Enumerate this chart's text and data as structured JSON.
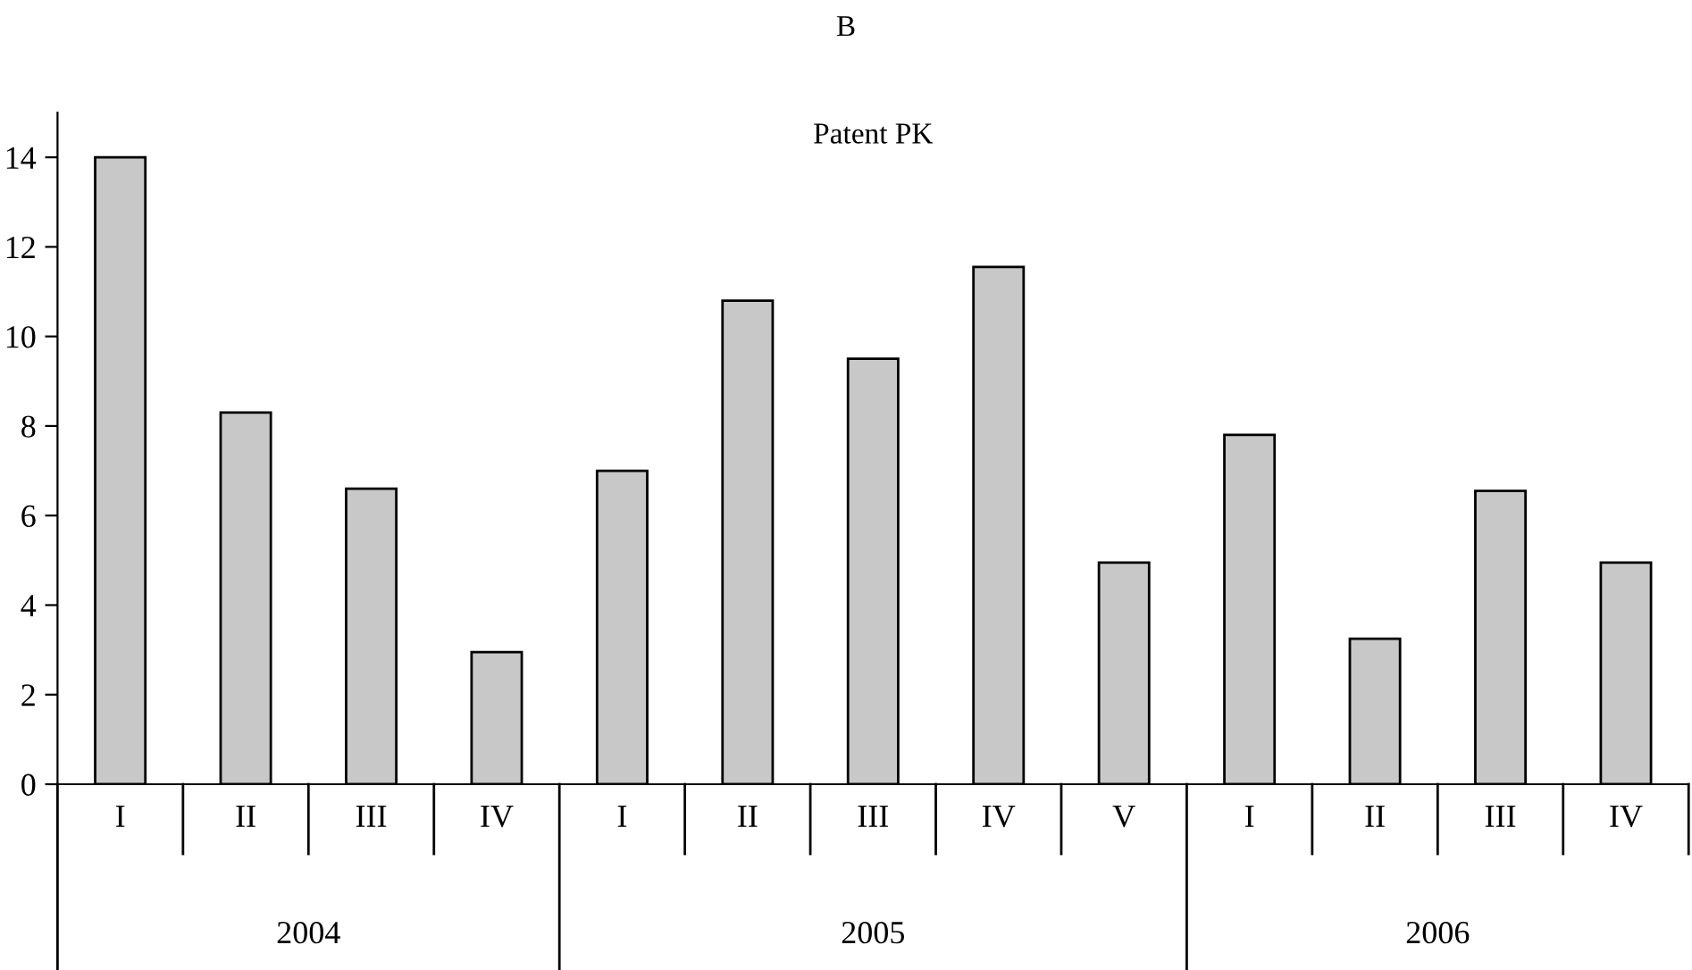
{
  "chart_data": {
    "type": "bar",
    "title": "B",
    "subtitle": "Patent PK",
    "categories": [
      "I",
      "II",
      "III",
      "IV",
      "I",
      "II",
      "III",
      "IV",
      "V",
      "I",
      "II",
      "III",
      "IV"
    ],
    "values": [
      14.0,
      8.3,
      6.6,
      2.95,
      7.0,
      10.8,
      9.5,
      11.55,
      4.95,
      7.8,
      3.25,
      6.55,
      4.95
    ],
    "color": "#c8c8c8",
    "annotations": [
      "2004",
      "2005",
      "2006"
    ],
    "ylim": [
      0,
      15
    ],
    "yticks": [
      0,
      2,
      4,
      6,
      8,
      10,
      12,
      14
    ],
    "grid": false
  }
}
